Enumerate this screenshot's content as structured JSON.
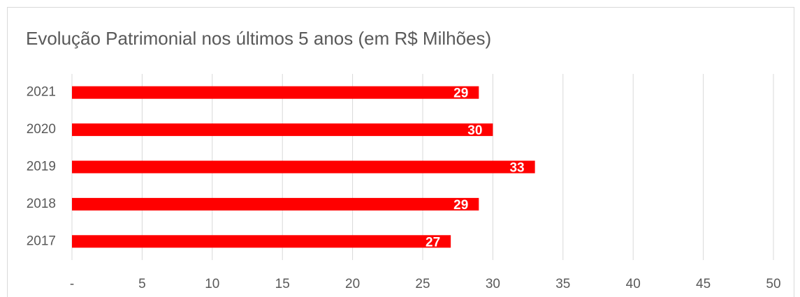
{
  "chart_data": {
    "type": "bar",
    "orientation": "horizontal",
    "title": "Evolução Patrimonial nos últimos 5 anos (em R$ Milhões)",
    "categories": [
      "2021",
      "2020",
      "2019",
      "2018",
      "2017"
    ],
    "values": [
      29,
      30,
      33,
      29,
      27
    ],
    "color": "#ff0000",
    "xlim": [
      0,
      50
    ],
    "xticks": [
      {
        "value": 0,
        "label": "-"
      },
      5,
      10,
      15,
      20,
      25,
      30,
      35,
      40,
      45,
      50
    ],
    "grid": true
  }
}
